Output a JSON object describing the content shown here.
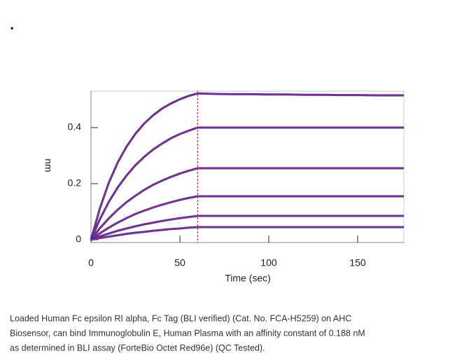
{
  "bullet": ".",
  "chart_data": {
    "type": "line",
    "x_label": "Time (sec)",
    "y_label": "nm",
    "x": [
      0,
      5,
      10,
      15,
      20,
      25,
      30,
      35,
      40,
      45,
      50,
      55,
      60,
      70,
      80,
      90,
      100,
      110,
      120,
      130,
      140,
      150,
      160,
      170,
      176
    ],
    "series": [
      {
        "color": "#2b2bc8",
        "values": [
          0,
          0.112,
          0.203,
          0.275,
          0.332,
          0.378,
          0.415,
          0.444,
          0.468,
          0.486,
          0.501,
          0.513,
          0.522,
          0.52,
          0.519,
          0.519,
          0.518,
          0.518,
          0.517,
          0.517,
          0.516,
          0.516,
          0.515,
          0.515,
          0.515
        ]
      },
      {
        "color": "#2b2bc8",
        "values": [
          0,
          0.073,
          0.135,
          0.186,
          0.229,
          0.266,
          0.296,
          0.322,
          0.343,
          0.362,
          0.377,
          0.389,
          0.4,
          0.4,
          0.4,
          0.4,
          0.4,
          0.4,
          0.4,
          0.4,
          0.4,
          0.4,
          0.4,
          0.4,
          0.4
        ]
      },
      {
        "color": "#2b2bc8",
        "values": [
          0,
          0.041,
          0.076,
          0.107,
          0.134,
          0.157,
          0.178,
          0.196,
          0.211,
          0.224,
          0.236,
          0.246,
          0.255,
          0.255,
          0.255,
          0.255,
          0.255,
          0.255,
          0.255,
          0.255,
          0.255,
          0.255,
          0.255,
          0.255,
          0.255
        ]
      },
      {
        "color": "#2b2bc8",
        "values": [
          0,
          0.023,
          0.043,
          0.061,
          0.077,
          0.092,
          0.104,
          0.115,
          0.125,
          0.134,
          0.142,
          0.149,
          0.155,
          0.155,
          0.155,
          0.155,
          0.155,
          0.155,
          0.155,
          0.155,
          0.155,
          0.155,
          0.155,
          0.155,
          0.155
        ]
      },
      {
        "color": "#2b2bc8",
        "values": [
          0,
          0.012,
          0.022,
          0.032,
          0.04,
          0.048,
          0.055,
          0.061,
          0.067,
          0.072,
          0.077,
          0.081,
          0.085,
          0.085,
          0.085,
          0.085,
          0.085,
          0.085,
          0.085,
          0.085,
          0.085,
          0.085,
          0.085,
          0.085,
          0.085
        ]
      },
      {
        "color": "#2b2bc8",
        "values": [
          0,
          0.006,
          0.011,
          0.016,
          0.021,
          0.025,
          0.028,
          0.032,
          0.035,
          0.038,
          0.04,
          0.043,
          0.045,
          0.045,
          0.045,
          0.045,
          0.045,
          0.045,
          0.045,
          0.045,
          0.045,
          0.045,
          0.045,
          0.045,
          0.045
        ]
      }
    ],
    "fit_color": "#e0302a",
    "vlines": [
      60
    ],
    "xlim": [
      0,
      176
    ],
    "xticks": [
      0,
      50,
      100,
      150
    ],
    "ylim": [
      -0.01,
      0.53
    ],
    "yticks": [
      0,
      0.2,
      0.4
    ]
  },
  "caption": [
    "Loaded Human Fc epsilon RI alpha, Fc Tag (BLI verified) (Cat. No. FCA-H5259) on AHC",
    "Biosensor, can bind Immunoglobulin E, Human Plasma with an affinity constant of 0.188 nM",
    "as determined in BLI assay (ForteBio Octet Red96e) (QC Tested)."
  ]
}
